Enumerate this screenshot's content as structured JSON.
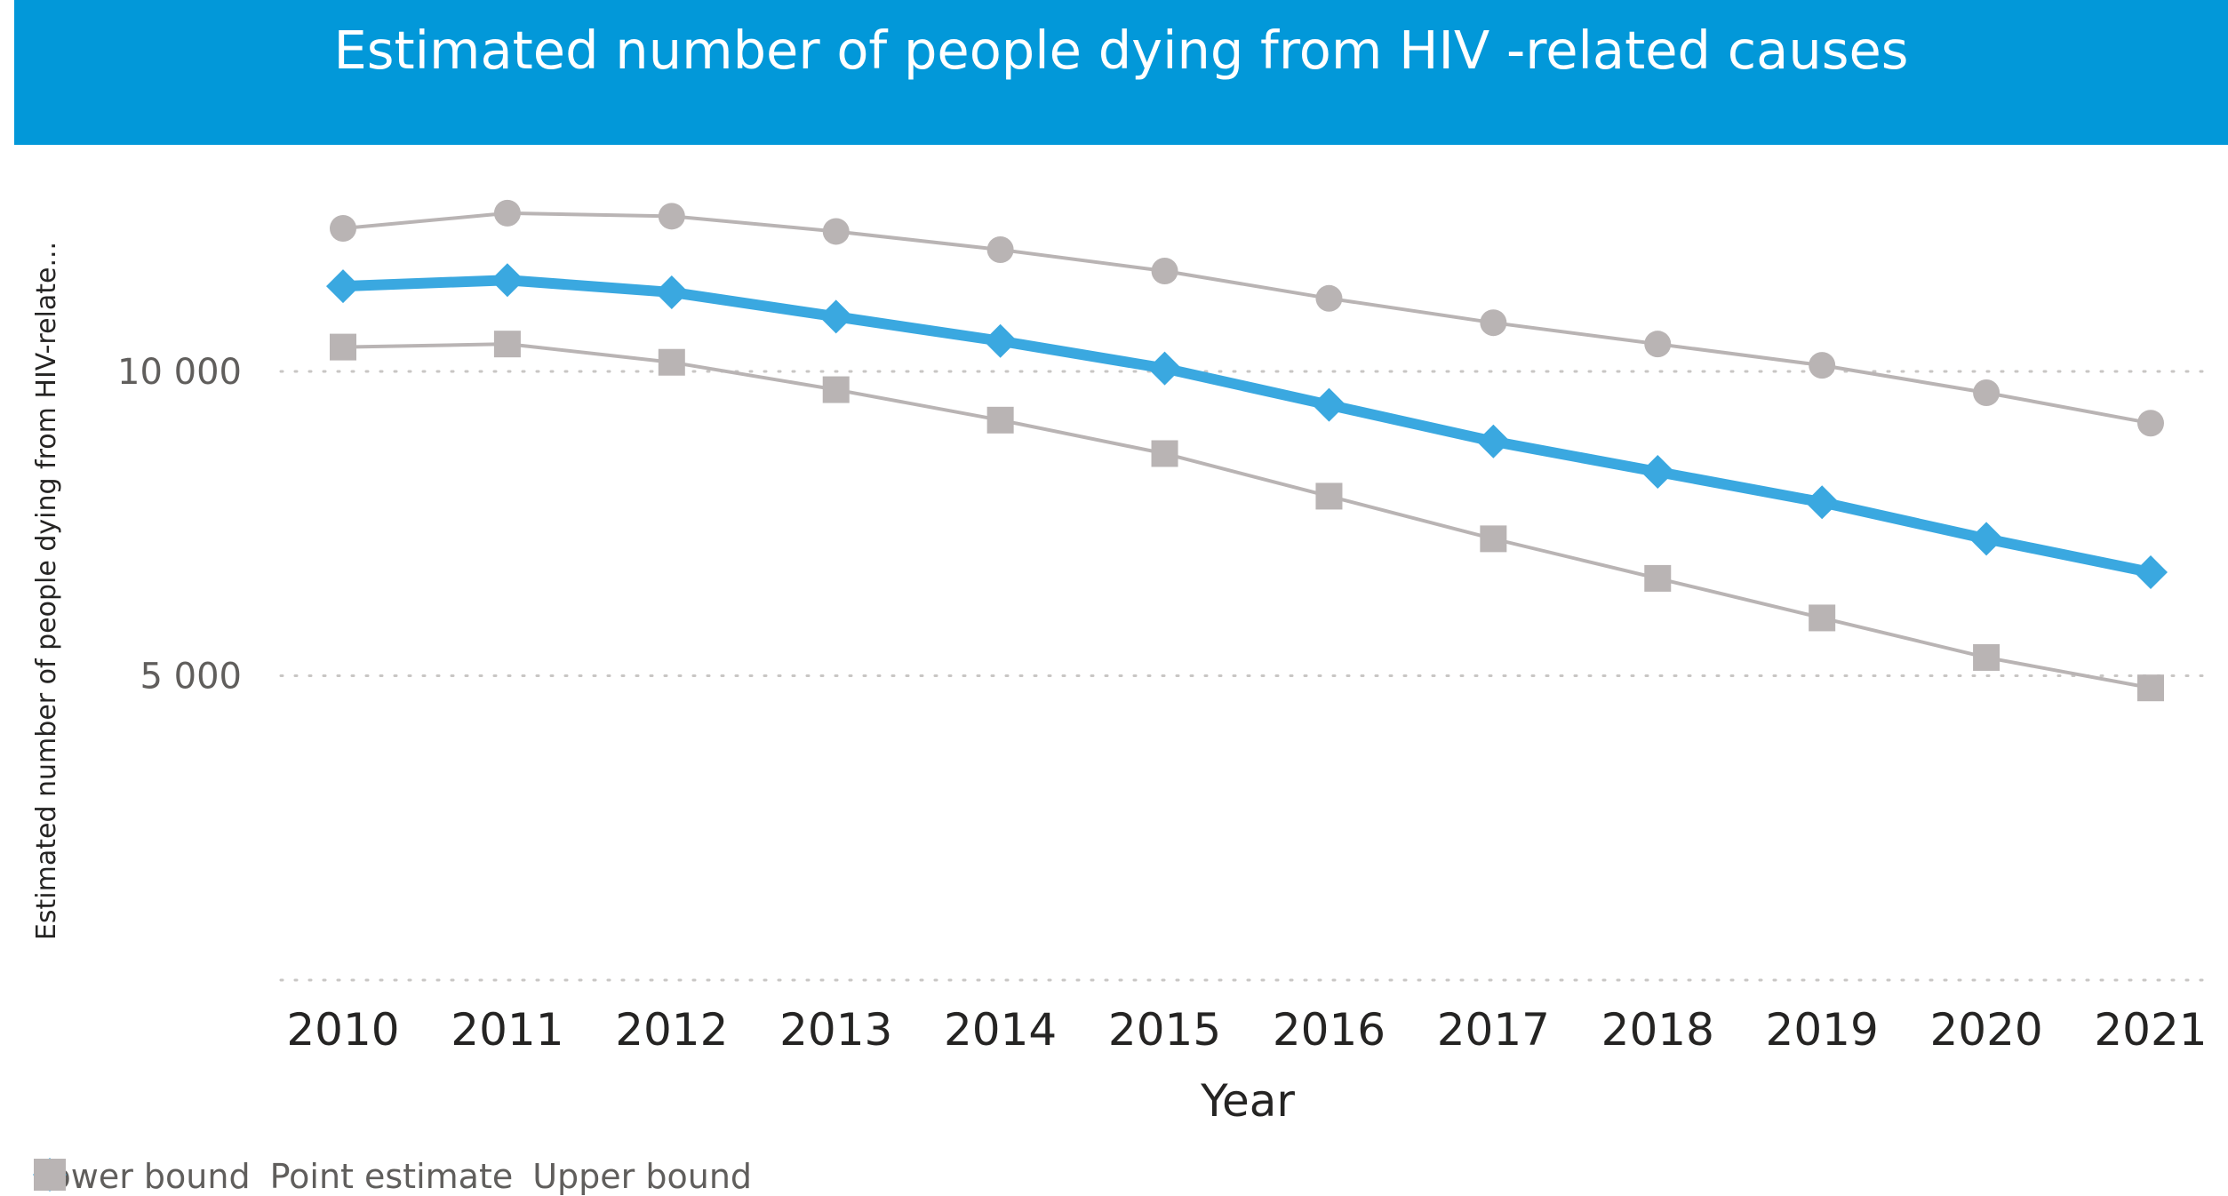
{
  "chart_data": {
    "type": "line",
    "title": "Estimated number of people dying from HIV -related causes",
    "xlabel": "Year",
    "ylabel": "Estimated number of people dying from HIV-relate...",
    "categories": [
      "2010",
      "2011",
      "2012",
      "2013",
      "2014",
      "2015",
      "2016",
      "2017",
      "2018",
      "2019",
      "2020",
      "2021"
    ],
    "ylim": [
      0,
      13000
    ],
    "y_ticks": [
      {
        "value": 5000,
        "label": "5 000"
      },
      {
        "value": 10000,
        "label": "10 000"
      }
    ],
    "grid": "dotted horizontal",
    "legend_position": "bottom-left",
    "series": [
      {
        "name": "Lower bound",
        "marker": "square",
        "color": "#b9b4b4",
        "values": [
          10400,
          10450,
          10150,
          9700,
          9200,
          8650,
          7950,
          7250,
          6600,
          5950,
          5300,
          4800
        ]
      },
      {
        "name": "Point estimate",
        "marker": "diamond",
        "color": "#3aa8e0",
        "values": [
          11400,
          11500,
          11300,
          10900,
          10500,
          10050,
          9450,
          8850,
          8350,
          7850,
          7250,
          6700
        ]
      },
      {
        "name": "Upper bound",
        "marker": "circle",
        "color": "#b9b4b4",
        "values": [
          12350,
          12600,
          12550,
          12300,
          12000,
          11650,
          11200,
          10800,
          10450,
          10100,
          9650,
          9150
        ]
      }
    ]
  }
}
